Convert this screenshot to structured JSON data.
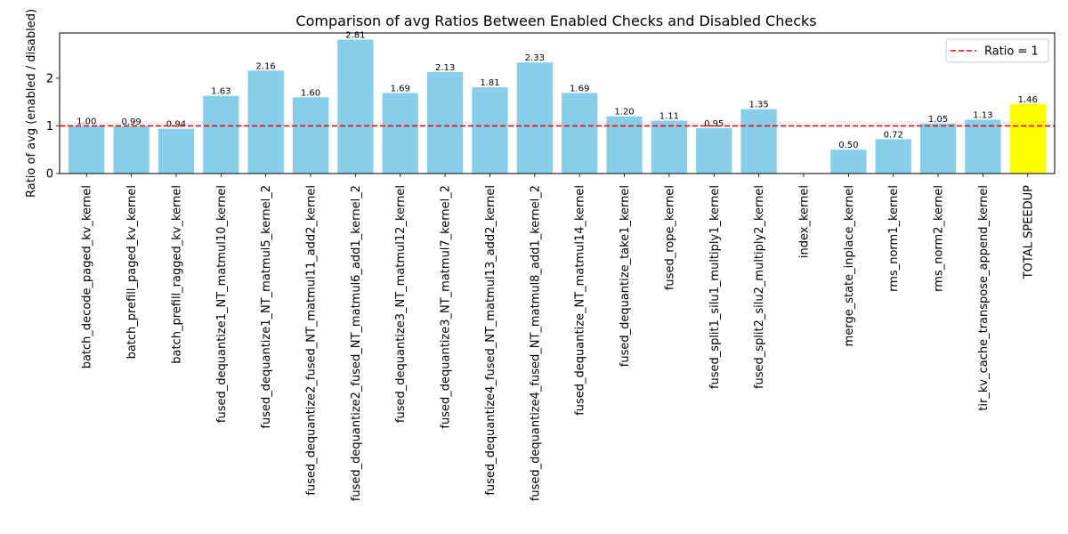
{
  "chart_data": {
    "type": "bar",
    "title": "Comparison of avg Ratios Between Enabled Checks and Disabled Checks",
    "xlabel": "",
    "ylabel": "Ratio of avg (enabled / disabled)",
    "ylim": [
      0,
      2.95
    ],
    "yticks": [
      "0",
      "1",
      "2"
    ],
    "categories": [
      "batch_decode_paged_kv_kernel",
      "batch_prefill_paged_kv_kernel",
      "batch_prefill_ragged_kv_kernel",
      "fused_dequantize1_NT_matmul10_kernel",
      "fused_dequantize1_NT_matmul5_kernel_2",
      "fused_dequantize2_fused_NT_matmul11_add2_kernel",
      "fused_dequantize2_fused_NT_matmul6_add1_kernel_2",
      "fused_dequantize3_NT_matmul12_kernel",
      "fused_dequantize3_NT_matmul7_kernel_2",
      "fused_dequantize4_fused_NT_matmul13_add2_kernel",
      "fused_dequantize4_fused_NT_matmul8_add1_kernel_2",
      "fused_dequantize_NT_matmul14_kernel",
      "fused_dequantize_take1_kernel",
      "fused_rope_kernel",
      "fused_split1_silu1_multiply1_kernel",
      "fused_split2_silu2_multiply2_kernel",
      "index_kernel",
      "merge_state_inplace_kernel",
      "rms_norm1_kernel",
      "rms_norm2_kernel",
      "tir_kv_cache_transpose_append_kernel",
      "TOTAL SPEEDUP"
    ],
    "values": [
      1.0,
      0.99,
      0.94,
      1.63,
      2.16,
      1.6,
      2.81,
      1.69,
      2.13,
      1.81,
      2.33,
      1.69,
      1.2,
      1.11,
      0.95,
      1.35,
      null,
      0.5,
      0.72,
      1.05,
      1.13,
      1.46
    ],
    "value_labels": [
      "1.00",
      "0.99",
      "0.94",
      "1.63",
      "2.16",
      "1.60",
      "2.81",
      "1.69",
      "2.13",
      "1.81",
      "2.33",
      "1.69",
      "1.20",
      "1.11",
      "0.95",
      "1.35",
      "",
      "0.50",
      "0.72",
      "1.05",
      "1.13",
      "1.46"
    ],
    "bar_color": "#87CEEB",
    "highlight_color": "#FFFF00",
    "highlight_category": "TOTAL SPEEDUP",
    "reference_line": {
      "value": 1,
      "label": "Ratio = 1",
      "color": "#FF0000",
      "style": "dashed"
    },
    "legend": {
      "placement": "top-right",
      "entries": [
        "Ratio = 1"
      ]
    },
    "grid": false
  }
}
